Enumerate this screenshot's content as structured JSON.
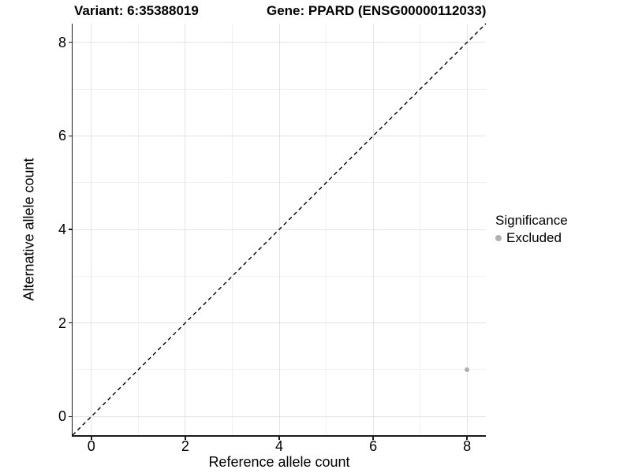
{
  "titles": {
    "variant": "Variant: 6:35388019",
    "gene": "Gene: PPARD (ENSG00000112033)"
  },
  "axes": {
    "x": {
      "label": "Reference allele count",
      "tick_labels": [
        "0",
        "2",
        "4",
        "6",
        "8"
      ],
      "tick_values": [
        0,
        2,
        4,
        6,
        8
      ],
      "minor_values": [
        1,
        3,
        5,
        7
      ],
      "range": [
        -0.4,
        8.4
      ]
    },
    "y": {
      "label": "Alternative allele count",
      "tick_labels": [
        "0",
        "2",
        "4",
        "6",
        "8"
      ],
      "tick_values": [
        0,
        2,
        4,
        6,
        8
      ],
      "minor_values": [
        1,
        3,
        5,
        7
      ],
      "range": [
        -0.4,
        8.4
      ]
    }
  },
  "legend": {
    "title": "Significance",
    "items": [
      {
        "label": "Excluded",
        "color": "#b0b0b0"
      }
    ]
  },
  "colors": {
    "grid_major": "#e4e4e4",
    "grid_minor": "#f1f1f1",
    "axis_line": "#1a1a1a",
    "identity_line": "#000000",
    "text": "#000000"
  },
  "chart_data": {
    "type": "scatter",
    "title": "Variant: 6:35388019   Gene: PPARD (ENSG00000112033)",
    "xlabel": "Reference allele count",
    "ylabel": "Alternative allele count",
    "xlim": [
      -0.4,
      8.4
    ],
    "ylim": [
      -0.4,
      8.4
    ],
    "x_ticks": [
      0,
      2,
      4,
      6,
      8
    ],
    "y_ticks": [
      0,
      2,
      4,
      6,
      8
    ],
    "grid": "major and minor light gray gridlines on white background",
    "legend_position": "right",
    "series": [
      {
        "name": "Excluded",
        "color": "#b0b0b0",
        "points": [
          {
            "x": 8,
            "y": 1
          }
        ]
      }
    ],
    "reference_line": {
      "type": "identity y=x",
      "from": [
        -0.4,
        -0.4
      ],
      "to": [
        8.4,
        8.4
      ],
      "style": "dashed",
      "color": "#000000"
    }
  }
}
